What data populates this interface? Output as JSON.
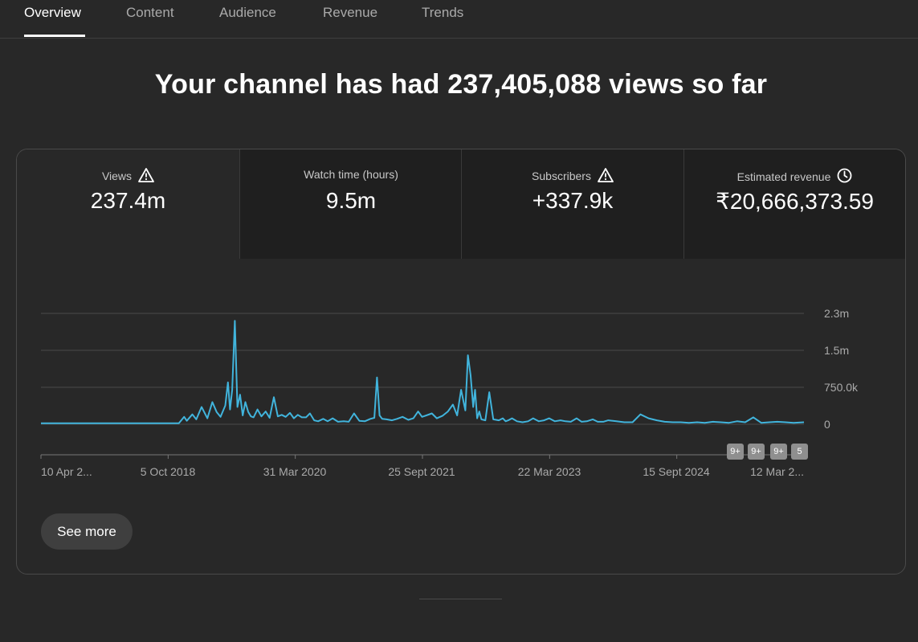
{
  "tabs": [
    "Overview",
    "Content",
    "Audience",
    "Revenue",
    "Trends"
  ],
  "active_tab": "Overview",
  "headline": "Your channel has had 237,405,088 views so far",
  "metrics": [
    {
      "label": "Views",
      "value": "237.4m",
      "icon": "warning-icon",
      "selected": true
    },
    {
      "label": "Watch time (hours)",
      "value": "9.5m",
      "icon": "",
      "selected": false
    },
    {
      "label": "Subscribers",
      "value": "+337.9k",
      "icon": "warning-icon",
      "selected": false
    },
    {
      "label": "Estimated revenue",
      "value": "₹20,666,373.59",
      "icon": "clock-icon",
      "selected": false
    }
  ],
  "badges": [
    "9+",
    "9+",
    "9+",
    "5"
  ],
  "see_more_label": "See more",
  "colors": {
    "background": "#282828",
    "line": "#3ea6ff",
    "series": "#41b4dc",
    "badge": "#8f8f8f"
  },
  "chart_data": {
    "type": "line",
    "title": "",
    "xlabel": "",
    "ylabel": "",
    "x_tick_labels": [
      "10 Apr 2...",
      "5 Oct 2018",
      "31 Mar 2020",
      "25 Sept 2021",
      "22 Mar 2023",
      "15 Sept 2024",
      "12 Mar 2..."
    ],
    "y_tick_labels": [
      "0",
      "750.0k",
      "1.5m",
      "2.3m"
    ],
    "y_tick_values": [
      0,
      750000,
      1500000,
      2250000
    ],
    "ylim": [
      0,
      2250000
    ],
    "x_start": "2017-04-10",
    "x_end": "2025-03-12",
    "grid": true,
    "series": [
      {
        "name": "",
        "x": [
          "2017-04-10",
          "2018-03-01",
          "2018-06-01",
          "2018-08-01",
          "2018-09-15",
          "2018-10-05",
          "2018-10-15",
          "2018-11-05",
          "2018-11-20",
          "2018-12-10",
          "2019-01-01",
          "2019-01-20",
          "2019-02-05",
          "2019-02-20",
          "2019-03-10",
          "2019-03-20",
          "2019-03-28",
          "2019-04-05",
          "2019-04-15",
          "2019-04-25",
          "2019-05-05",
          "2019-05-15",
          "2019-05-25",
          "2019-06-05",
          "2019-06-15",
          "2019-06-25",
          "2019-07-10",
          "2019-07-25",
          "2019-08-10",
          "2019-08-25",
          "2019-09-10",
          "2019-09-25",
          "2019-10-10",
          "2019-10-25",
          "2019-11-10",
          "2019-11-25",
          "2019-12-10",
          "2019-12-25",
          "2020-01-10",
          "2020-01-25",
          "2020-02-10",
          "2020-02-25",
          "2020-03-15",
          "2020-04-01",
          "2020-04-20",
          "2020-05-10",
          "2020-06-01",
          "2020-06-20",
          "2020-07-10",
          "2020-07-30",
          "2020-08-20",
          "2020-09-10",
          "2020-09-25",
          "2020-10-05",
          "2020-10-15",
          "2020-10-25",
          "2020-11-10",
          "2020-12-01",
          "2020-12-20",
          "2021-01-10",
          "2021-02-01",
          "2021-02-20",
          "2021-03-10",
          "2021-03-25",
          "2021-04-10",
          "2021-05-01",
          "2021-05-20",
          "2021-06-10",
          "2021-07-01",
          "2021-07-20",
          "2021-08-05",
          "2021-08-20",
          "2021-09-05",
          "2021-09-15",
          "2021-09-25",
          "2021-10-05",
          "2021-10-12",
          "2021-10-20",
          "2021-10-28",
          "2021-11-05",
          "2021-11-20",
          "2021-12-05",
          "2021-12-20",
          "2022-01-10",
          "2022-01-25",
          "2022-02-05",
          "2022-02-15",
          "2022-03-01",
          "2022-03-20",
          "2022-04-10",
          "2022-05-01",
          "2022-05-20",
          "2022-06-10",
          "2022-07-01",
          "2022-07-20",
          "2022-08-10",
          "2022-09-01",
          "2022-09-20",
          "2022-10-10",
          "2022-11-01",
          "2022-11-20",
          "2022-12-10",
          "2023-01-01",
          "2023-01-20",
          "2023-02-10",
          "2023-03-01",
          "2023-04-01",
          "2023-05-01",
          "2023-06-01",
          "2023-07-01",
          "2023-08-01",
          "2023-09-01",
          "2023-10-01",
          "2023-11-01",
          "2023-12-01",
          "2024-01-01",
          "2024-02-01",
          "2024-03-01",
          "2024-04-01",
          "2024-05-01",
          "2024-06-01",
          "2024-07-01",
          "2024-08-01",
          "2024-09-01",
          "2024-10-01",
          "2024-11-01",
          "2024-12-01",
          "2025-01-01",
          "2025-02-01",
          "2025-03-12"
        ],
        "values": [
          20000,
          20000,
          20000,
          20000,
          20000,
          150000,
          70000,
          200000,
          100000,
          350000,
          120000,
          450000,
          250000,
          150000,
          380000,
          850000,
          300000,
          700000,
          2100000,
          350000,
          600000,
          180000,
          450000,
          250000,
          160000,
          140000,
          300000,
          160000,
          260000,
          130000,
          550000,
          160000,
          190000,
          150000,
          230000,
          120000,
          190000,
          140000,
          140000,
          220000,
          80000,
          60000,
          110000,
          60000,
          120000,
          50000,
          60000,
          50000,
          220000,
          70000,
          60000,
          110000,
          130000,
          950000,
          180000,
          110000,
          100000,
          80000,
          110000,
          150000,
          90000,
          120000,
          260000,
          150000,
          180000,
          220000,
          120000,
          170000,
          260000,
          400000,
          180000,
          700000,
          280000,
          1400000,
          1000000,
          350000,
          700000,
          120000,
          260000,
          100000,
          80000,
          650000,
          100000,
          80000,
          120000,
          60000,
          80000,
          120000,
          60000,
          40000,
          60000,
          120000,
          60000,
          80000,
          120000,
          60000,
          80000,
          60000,
          50000,
          120000,
          50000,
          60000,
          100000,
          50000,
          50000,
          80000,
          60000,
          40000,
          40000,
          200000,
          120000,
          80000,
          50000,
          40000,
          40000,
          30000,
          40000,
          30000,
          50000,
          40000,
          30000,
          60000,
          40000,
          140000,
          30000,
          40000,
          50000,
          40000,
          30000,
          40000
        ]
      }
    ]
  }
}
